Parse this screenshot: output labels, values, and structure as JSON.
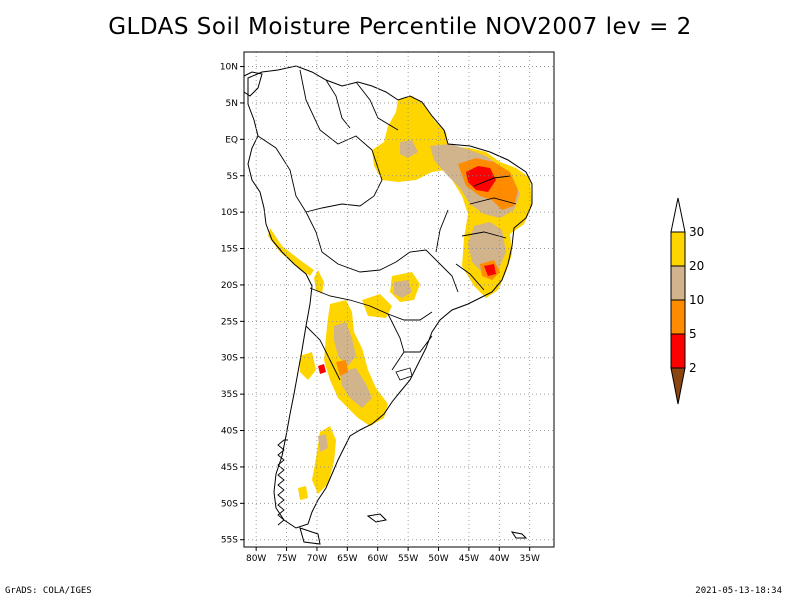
{
  "title": "GLDAS Soil Moisture Percentile NOV2007 lev = 2",
  "footer": {
    "left": "GrADS: COLA/IGES",
    "right": "2021-05-13-18:34"
  },
  "map": {
    "lon_range": [
      -82,
      -31
    ],
    "lat_range": [
      -56,
      12
    ],
    "grid": "dotted",
    "lat_ticks": [
      {
        "lat": 10,
        "label": "10N"
      },
      {
        "lat": 5,
        "label": "5N"
      },
      {
        "lat": 0,
        "label": "EQ"
      },
      {
        "lat": -5,
        "label": "5S"
      },
      {
        "lat": -10,
        "label": "10S"
      },
      {
        "lat": -15,
        "label": "15S"
      },
      {
        "lat": -20,
        "label": "20S"
      },
      {
        "lat": -25,
        "label": "25S"
      },
      {
        "lat": -30,
        "label": "30S"
      },
      {
        "lat": -35,
        "label": "35S"
      },
      {
        "lat": -40,
        "label": "40S"
      },
      {
        "lat": -45,
        "label": "45S"
      },
      {
        "lat": -50,
        "label": "50S"
      },
      {
        "lat": -55,
        "label": "55S"
      }
    ],
    "lon_ticks": [
      {
        "lon": -80,
        "label": "80W"
      },
      {
        "lon": -75,
        "label": "75W"
      },
      {
        "lon": -70,
        "label": "70W"
      },
      {
        "lon": -65,
        "label": "65W"
      },
      {
        "lon": -60,
        "label": "60W"
      },
      {
        "lon": -55,
        "label": "55W"
      },
      {
        "lon": -50,
        "label": "50W"
      },
      {
        "lon": -45,
        "label": "45W"
      },
      {
        "lon": -40,
        "label": "40W"
      },
      {
        "lon": -35,
        "label": "35W"
      }
    ]
  },
  "colorbar": {
    "levels": [
      {
        "label": "30",
        "color": "#ffffff"
      },
      {
        "label": "20",
        "color": "#ffd500"
      },
      {
        "label": "10",
        "color": "#d2b48c"
      },
      {
        "label": "5",
        "color": "#ff8c00"
      },
      {
        "label": "2",
        "color": "#ff0000"
      },
      {
        "label": "",
        "color": "#8b4513"
      }
    ],
    "top_color": "#ffffff",
    "bottom_color": "#8b4513"
  },
  "colors": {
    "p20_30": "#ffd500",
    "p10_20": "#d2b48c",
    "p5_10": "#ff8c00",
    "p2_5": "#ff0000"
  }
}
